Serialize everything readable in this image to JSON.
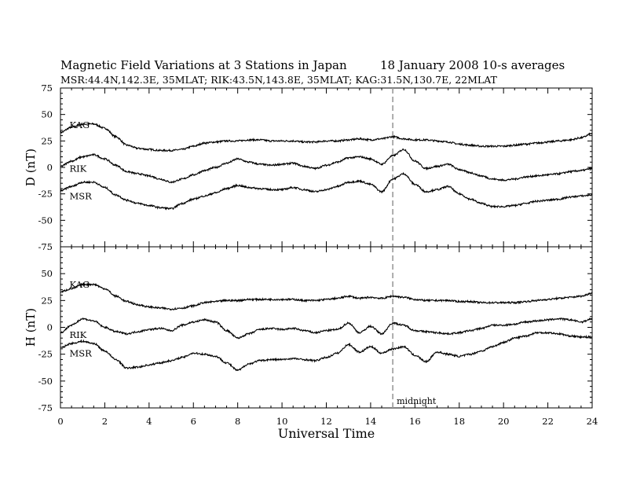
{
  "header": {
    "title": "Magnetic Field Variations at 3 Stations in Japan",
    "date": "18 January 2008",
    "averaging": "10-s averages",
    "stations_line": "MSR:44.4N,142.3E, 35MLAT;  RIK:43.5N,143.8E, 35MLAT;  KAG:31.5N,130.7E, 22MLAT"
  },
  "chart_data": [
    {
      "type": "line",
      "panel": "D",
      "ylabel": "D (nT)",
      "xlabel": "",
      "xlim": [
        0,
        24
      ],
      "ylim": [
        -75,
        75
      ],
      "yticks": [
        75,
        50,
        25,
        0,
        -25,
        -50,
        -75
      ],
      "grid": false,
      "series": [
        {
          "name": "KAG",
          "x": [
            0,
            0.5,
            1,
            1.5,
            2,
            2.5,
            3,
            3.5,
            4,
            4.5,
            5,
            5.5,
            6,
            6.5,
            7,
            7.5,
            8,
            8.5,
            9,
            9.5,
            10,
            10.5,
            11,
            11.5,
            12,
            12.5,
            13,
            13.5,
            14,
            14.5,
            15,
            15.5,
            16,
            16.5,
            17,
            17.5,
            18,
            18.5,
            19,
            19.5,
            20,
            20.5,
            21,
            21.5,
            22,
            22.5,
            23,
            23.5,
            24
          ],
          "y": [
            33,
            38,
            41,
            41,
            37,
            29,
            21,
            18,
            17,
            16,
            16,
            17,
            20,
            23,
            24,
            25,
            25,
            26,
            26,
            25,
            25,
            25,
            24,
            24,
            25,
            25,
            26,
            27,
            26,
            27,
            29,
            27,
            26,
            26,
            25,
            24,
            22,
            21,
            20,
            20,
            20,
            21,
            22,
            23,
            24,
            25,
            26,
            28,
            32
          ]
        },
        {
          "name": "RIK",
          "x": [
            0,
            0.5,
            1,
            1.5,
            2,
            2.5,
            3,
            3.5,
            4,
            4.5,
            5,
            5.5,
            6,
            6.5,
            7,
            7.5,
            8,
            8.5,
            9,
            9.5,
            10,
            10.5,
            11,
            11.5,
            12,
            12.5,
            13,
            13.5,
            14,
            14.5,
            15,
            15.5,
            16,
            16.5,
            17,
            17.5,
            18,
            18.5,
            19,
            19.5,
            20,
            20.5,
            21,
            21.5,
            22,
            22.5,
            23,
            23.5,
            24
          ],
          "y": [
            1,
            6,
            10,
            12,
            8,
            2,
            -4,
            -6,
            -8,
            -11,
            -14,
            -11,
            -7,
            -3,
            0,
            4,
            8,
            5,
            3,
            2,
            3,
            4,
            1,
            -1,
            2,
            5,
            9,
            10,
            8,
            3,
            11,
            17,
            6,
            -1,
            1,
            3,
            -2,
            -5,
            -8,
            -11,
            -12,
            -11,
            -9,
            -8,
            -7,
            -6,
            -4,
            -3,
            -1
          ]
        },
        {
          "name": "MSR",
          "x": [
            0,
            0.5,
            1,
            1.5,
            2,
            2.5,
            3,
            3.5,
            4,
            4.5,
            5,
            5.5,
            6,
            6.5,
            7,
            7.5,
            8,
            8.5,
            9,
            9.5,
            10,
            10.5,
            11,
            11.5,
            12,
            12.5,
            13,
            13.5,
            14,
            14.5,
            15,
            15.5,
            16,
            16.5,
            17,
            17.5,
            18,
            18.5,
            19,
            19.5,
            20,
            20.5,
            21,
            21.5,
            22,
            22.5,
            23,
            23.5,
            24
          ],
          "y": [
            -22,
            -18,
            -14,
            -14,
            -19,
            -26,
            -31,
            -34,
            -36,
            -38,
            -39,
            -34,
            -30,
            -27,
            -24,
            -20,
            -17,
            -19,
            -20,
            -21,
            -21,
            -19,
            -21,
            -23,
            -21,
            -18,
            -14,
            -13,
            -16,
            -23,
            -11,
            -6,
            -16,
            -23,
            -21,
            -18,
            -25,
            -30,
            -34,
            -37,
            -37,
            -36,
            -34,
            -32,
            -31,
            -30,
            -28,
            -27,
            -26
          ]
        }
      ]
    },
    {
      "type": "line",
      "panel": "H",
      "ylabel": "H (nT)",
      "xlabel": "Universal Time",
      "xlim": [
        0,
        24
      ],
      "ylim": [
        -75,
        75
      ],
      "yticks": [
        50,
        25,
        0,
        -25,
        -50,
        -75
      ],
      "xticks": [
        0,
        2,
        4,
        6,
        8,
        10,
        12,
        14,
        16,
        18,
        20,
        22,
        24
      ],
      "grid": false,
      "annotation": {
        "x": 15,
        "label": "midnight",
        "style": "dashed-vertical"
      },
      "series": [
        {
          "name": "KAG",
          "x": [
            0,
            0.5,
            1,
            1.5,
            2,
            2.5,
            3,
            3.5,
            4,
            4.5,
            5,
            5.5,
            6,
            6.5,
            7,
            7.5,
            8,
            8.5,
            9,
            9.5,
            10,
            10.5,
            11,
            11.5,
            12,
            12.5,
            13,
            13.5,
            14,
            14.5,
            15,
            15.5,
            16,
            16.5,
            17,
            17.5,
            18,
            18.5,
            19,
            19.5,
            20,
            20.5,
            21,
            21.5,
            22,
            22.5,
            23,
            23.5,
            24
          ],
          "y": [
            33,
            36,
            40,
            40,
            36,
            29,
            24,
            21,
            19,
            18,
            17,
            18,
            20,
            23,
            24,
            25,
            25,
            26,
            26,
            26,
            26,
            26,
            25,
            25,
            26,
            27,
            29,
            27,
            28,
            27,
            29,
            28,
            26,
            25,
            25,
            25,
            24,
            24,
            23,
            23,
            23,
            23,
            24,
            25,
            26,
            27,
            28,
            29,
            32
          ]
        },
        {
          "name": "RIK",
          "x": [
            0,
            0.5,
            1,
            1.5,
            2,
            2.5,
            3,
            3.5,
            4,
            4.5,
            5,
            5.5,
            6,
            6.5,
            7,
            7.5,
            8,
            8.5,
            9,
            9.5,
            10,
            10.5,
            11,
            11.5,
            12,
            12.5,
            13,
            13.5,
            14,
            14.5,
            15,
            15.5,
            16,
            16.5,
            17,
            17.5,
            18,
            18.5,
            19,
            19.5,
            20,
            20.5,
            21,
            21.5,
            22,
            22.5,
            23,
            23.5,
            24
          ],
          "y": [
            -5,
            2,
            8,
            6,
            0,
            -4,
            -6,
            -4,
            -2,
            -1,
            -3,
            2,
            5,
            7,
            5,
            -3,
            -10,
            -6,
            -2,
            -1,
            -2,
            -1,
            -3,
            -5,
            -3,
            -2,
            4,
            -5,
            1,
            -6,
            4,
            2,
            -3,
            -4,
            -5,
            -6,
            -5,
            -3,
            -1,
            2,
            2,
            3,
            5,
            6,
            7,
            8,
            7,
            5,
            8
          ]
        },
        {
          "name": "MSR",
          "x": [
            0,
            0.5,
            1,
            1.5,
            2,
            2.5,
            3,
            3.5,
            4,
            4.5,
            5,
            5.5,
            6,
            6.5,
            7,
            7.5,
            8,
            8.5,
            9,
            9.5,
            10,
            10.5,
            11,
            11.5,
            12,
            12.5,
            13,
            13.5,
            14,
            14.5,
            15,
            15.5,
            16,
            16.5,
            17,
            17.5,
            18,
            18.5,
            19,
            19.5,
            20,
            20.5,
            21,
            21.5,
            22,
            22.5,
            23,
            23.5,
            24
          ],
          "y": [
            -19,
            -15,
            -13,
            -15,
            -22,
            -30,
            -38,
            -37,
            -35,
            -33,
            -31,
            -28,
            -24,
            -25,
            -27,
            -33,
            -40,
            -34,
            -31,
            -30,
            -30,
            -29,
            -30,
            -31,
            -28,
            -24,
            -16,
            -23,
            -18,
            -24,
            -20,
            -18,
            -26,
            -32,
            -23,
            -25,
            -27,
            -25,
            -22,
            -18,
            -14,
            -10,
            -8,
            -5,
            -5,
            -6,
            -8,
            -9,
            -9
          ]
        }
      ]
    }
  ],
  "colors": {
    "line": "#000000",
    "annotation": "#9a9a9a",
    "background": "#ffffff"
  }
}
